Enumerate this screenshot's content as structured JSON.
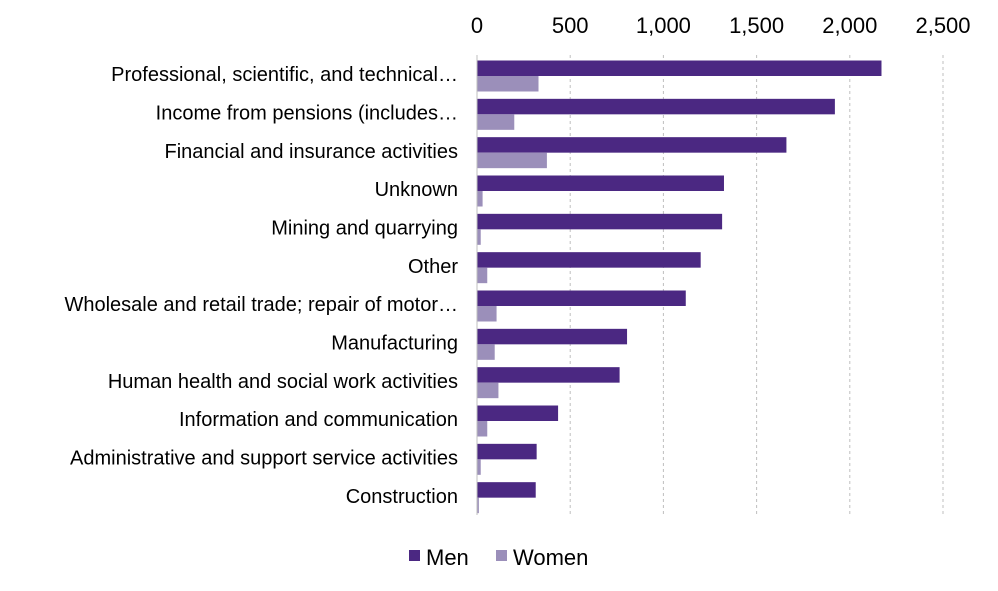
{
  "chart_data": {
    "type": "bar",
    "orientation": "horizontal",
    "x_axis_position": "top",
    "categories": [
      "Professional, scientific, and technical…",
      "Income from pensions (includes…",
      "Financial and insurance activities",
      "Unknown",
      "Mining and quarrying",
      "Other",
      "Wholesale and retail trade; repair of motor…",
      "Manufacturing",
      "Human health and social work activities",
      "Information and communication",
      "Administrative and support service activities",
      "Construction"
    ],
    "series": [
      {
        "name": "Men",
        "color": "#4b2882",
        "values": [
          2170,
          1920,
          1660,
          1325,
          1315,
          1200,
          1120,
          805,
          765,
          435,
          320,
          315
        ]
      },
      {
        "name": "Women",
        "color": "#9b8fba",
        "values": [
          330,
          200,
          375,
          30,
          20,
          55,
          105,
          95,
          115,
          55,
          20,
          10
        ]
      }
    ],
    "xlim": [
      0,
      2500
    ],
    "ticks": [
      0,
      500,
      1000,
      1500,
      2000,
      2500
    ],
    "tick_labels": [
      "0",
      "500",
      "1,000",
      "1,500",
      "2,000",
      "2,500"
    ],
    "grid": true,
    "legend_position": "bottom",
    "title": "",
    "xlabel": "",
    "ylabel": ""
  }
}
